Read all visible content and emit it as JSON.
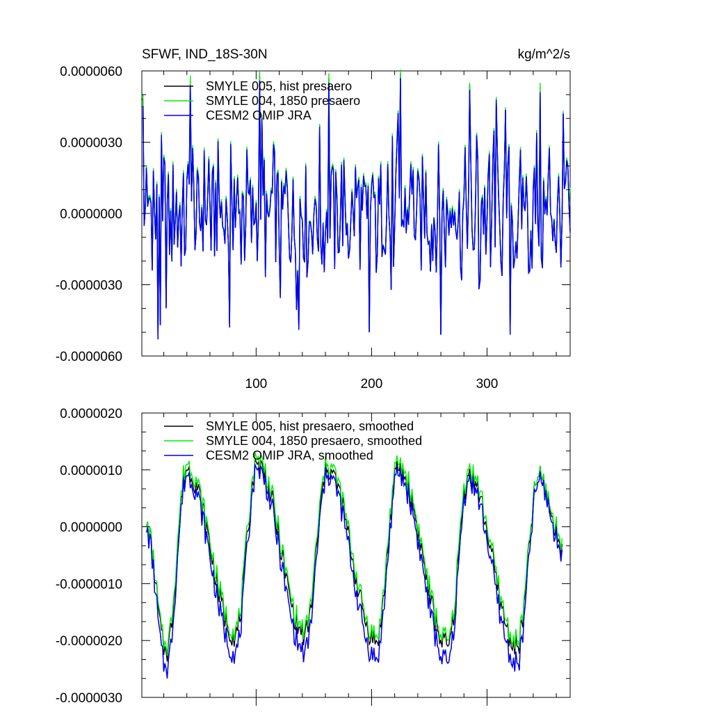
{
  "figure": {
    "title_left": "SFWF, IND_18S-30N",
    "title_right": "kg/m^2/s"
  },
  "chart_data": [
    {
      "type": "line",
      "title": "SFWF, IND_18S-30N",
      "units": "kg/m^2/s",
      "xlim": [
        1,
        372
      ],
      "ylim": [
        -6e-06,
        6e-06
      ],
      "x_ticks": [
        100,
        200,
        300
      ],
      "x_tick_labels": [
        "100",
        "200",
        "300"
      ],
      "y_ticks": [
        -6e-06,
        -3e-06,
        0,
        3e-06,
        6e-06
      ],
      "y_tick_labels": [
        "-0.0000060",
        "-0.0000030",
        "0.0000000",
        "0.0000030",
        "0.0000060"
      ],
      "legend_position": "top-left",
      "grid": false,
      "series": [
        {
          "name": "SMYLE 005, hist presaero",
          "color": "#000000",
          "x": [
            1,
            372
          ],
          "values": [
            4.8e-06,
            -8e-07
          ]
        },
        {
          "name": "SMYLE 004, 1850 presaero",
          "color": "#00ee00",
          "x": [
            1,
            372
          ],
          "values": [
            5e-06,
            1.1e-06
          ]
        },
        {
          "name": "CESM2 OMIP JRA",
          "color": "#0000ee",
          "x": [
            1,
            372
          ],
          "values": [
            4.5e-06,
            -7e-07
          ]
        }
      ],
      "structure": {
        "period_months": 12,
        "annual_peaks": [
          {
            "x": 2,
            "values": [
              4.8e-06,
              5e-06,
              4.5e-06
            ]
          },
          {
            "x": 43,
            "values": [
              5.6e-06,
              5.8e-06,
              5.4e-06
            ]
          },
          {
            "x": 103,
            "values": [
              5.8e-06,
              6e-06,
              5.6e-06
            ]
          },
          {
            "x": 163,
            "values": [
              5.7e-06,
              5.9e-06,
              5.5e-06
            ]
          },
          {
            "x": 225,
            "values": [
              5.9e-06,
              6.1e-06,
              5.7e-06
            ]
          },
          {
            "x": 285,
            "values": [
              5.4e-06,
              5.5e-06,
              5.2e-06
            ]
          },
          {
            "x": 346,
            "values": [
              5.3e-06,
              5.5e-06,
              5.1e-06
            ]
          }
        ],
        "deep_minima": [
          {
            "x": 15,
            "value": -5.3e-06
          },
          {
            "x": 17,
            "value": -4.7e-06
          },
          {
            "x": 77,
            "value": -4.8e-06
          },
          {
            "x": 137,
            "value": -4.9e-06
          },
          {
            "x": 198,
            "value": -5e-06
          },
          {
            "x": 260,
            "value": -5.1e-06
          },
          {
            "x": 320,
            "value": -5.1e-06
          }
        ]
      }
    },
    {
      "type": "line",
      "title": "",
      "units": "kg/m^2/s",
      "xlim": [
        1,
        372
      ],
      "ylim": [
        -3e-06,
        2e-06
      ],
      "x_ticks": [
        100,
        200,
        300
      ],
      "x_tick_labels": [],
      "y_ticks": [
        -3e-06,
        -2e-06,
        -1e-06,
        0,
        1e-06,
        2e-06
      ],
      "y_tick_labels": [
        "-0.0000030",
        "-0.0000020",
        "-0.0000010",
        "0.0000000",
        "0.0000010",
        "0.0000020"
      ],
      "legend_position": "top-left",
      "grid": false,
      "series": [
        {
          "name": "SMYLE 005, hist presaero, smoothed",
          "color": "#000000",
          "x": [
            5,
            365
          ],
          "values": [
            0.0,
            -3e-07
          ]
        },
        {
          "name": "SMYLE 004, 1850 presaero, smoothed",
          "color": "#00ee00",
          "x": [
            5,
            365
          ],
          "values": [
            0.0,
            -2e-07
          ]
        },
        {
          "name": "CESM2 OMIP JRA, smoothed",
          "color": "#0000ee",
          "x": [
            5,
            365
          ],
          "values": [
            -1e-07,
            -4e-07
          ]
        }
      ],
      "structure": {
        "period_months": 12,
        "annual_maxima": [
          {
            "x": 40,
            "values": [
              1e-06,
              1.1e-06,
              9e-07
            ]
          },
          {
            "x": 101,
            "values": [
              1.1e-06,
              1.2e-06,
              1e-06
            ]
          },
          {
            "x": 162,
            "values": [
              1e-06,
              1.1e-06,
              9e-07
            ]
          },
          {
            "x": 223,
            "values": [
              1e-06,
              1.1e-06,
              9e-07
            ]
          },
          {
            "x": 284,
            "values": [
              9e-07,
              1e-06,
              8e-07
            ]
          },
          {
            "x": 345,
            "values": [
              9e-07,
              9e-07,
              8e-07
            ]
          }
        ],
        "annual_minima": [
          {
            "x": 22,
            "values": [
              -2.2e-06,
              -2.1e-06,
              -2.5e-06
            ]
          },
          {
            "x": 82,
            "values": [
              -1.9e-06,
              -1.8e-06,
              -2.2e-06
            ]
          },
          {
            "x": 142,
            "values": [
              -1.9e-06,
              -1.8e-06,
              -2.2e-06
            ]
          },
          {
            "x": 204,
            "values": [
              -2e-06,
              -1.9e-06,
              -2.3e-06
            ]
          },
          {
            "x": 266,
            "values": [
              -2.1e-06,
              -2e-06,
              -2.4e-06
            ]
          },
          {
            "x": 326,
            "values": [
              -2.1e-06,
              -2e-06,
              -2.4e-06
            ]
          }
        ]
      }
    }
  ]
}
